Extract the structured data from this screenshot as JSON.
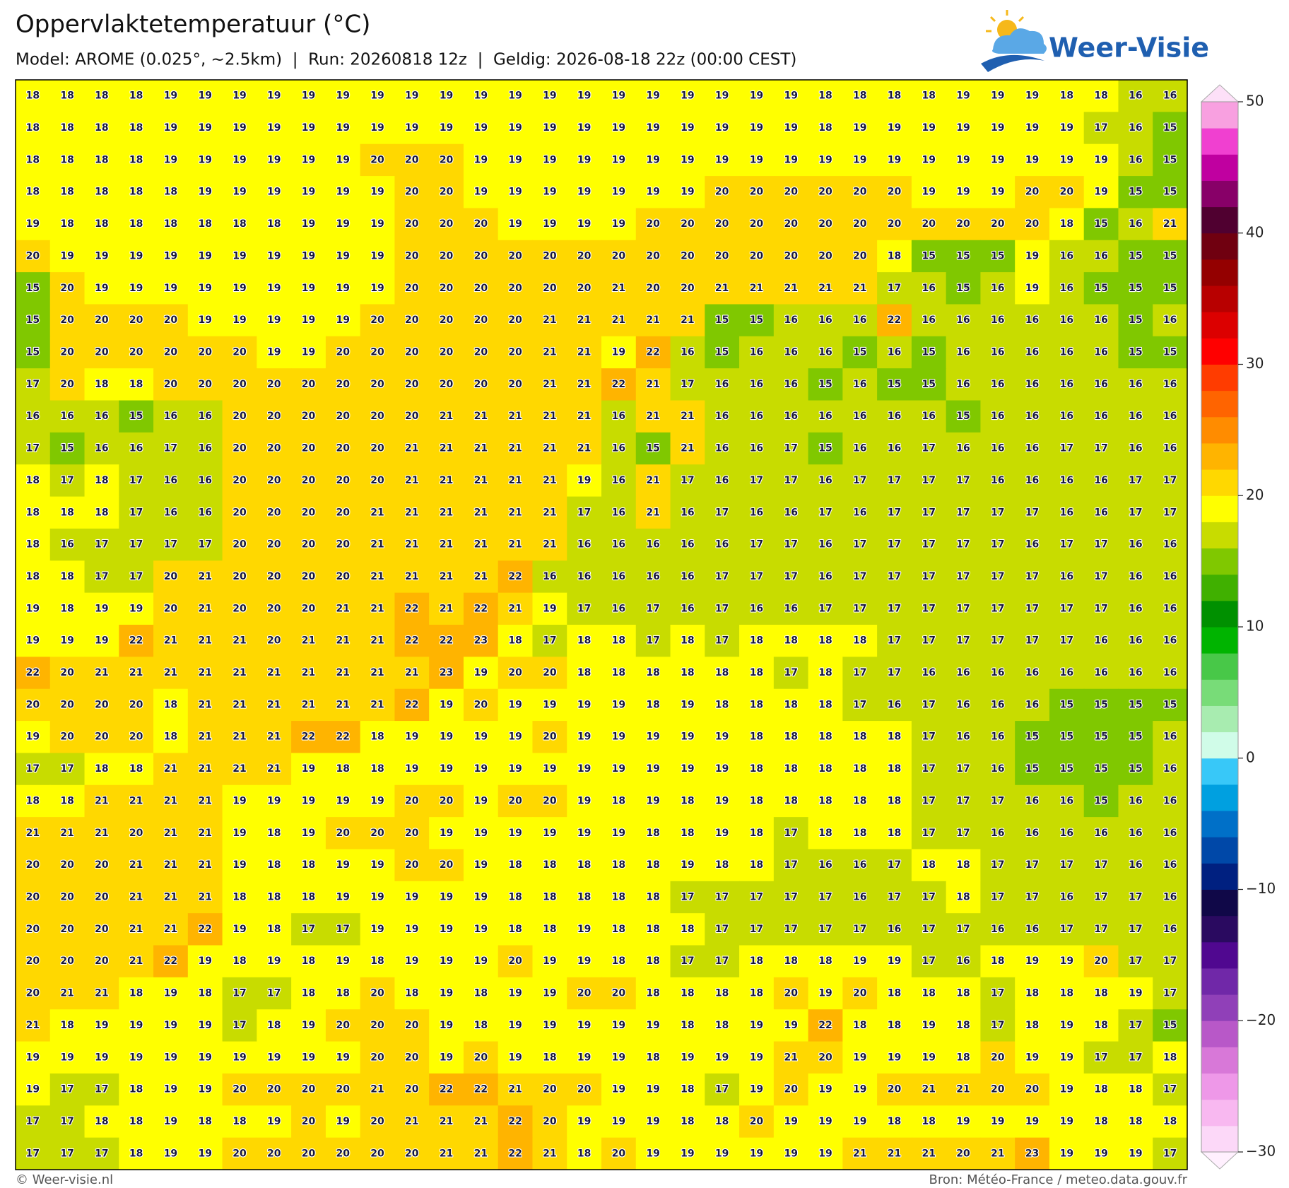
{
  "header": {
    "title": "Oppervlaktetemperatuur (°C)",
    "subtitle": "Model: AROME (0.025°, ~2.5km)  |  Run: 20260818 12z  |  Geldig: 2026-08-18 22z (00:00 CEST)",
    "logo": "Weer-Visie"
  },
  "map": {
    "type": "heatmap",
    "values": [
      [
        18,
        18,
        18,
        18,
        19,
        19,
        19,
        19,
        19,
        19,
        19,
        19,
        19,
        19,
        19,
        19,
        19,
        19,
        19,
        19,
        19,
        19,
        19,
        18,
        18,
        18,
        18,
        19,
        19,
        19,
        18,
        18,
        16,
        16
      ],
      [
        18,
        18,
        18,
        18,
        19,
        19,
        19,
        19,
        19,
        19,
        19,
        19,
        19,
        19,
        19,
        19,
        19,
        19,
        19,
        19,
        19,
        19,
        19,
        18,
        19,
        19,
        19,
        19,
        19,
        19,
        19,
        17,
        16,
        15
      ],
      [
        18,
        18,
        18,
        18,
        19,
        19,
        19,
        19,
        19,
        19,
        20,
        20,
        20,
        19,
        19,
        19,
        19,
        19,
        19,
        19,
        19,
        19,
        19,
        19,
        19,
        19,
        19,
        19,
        19,
        19,
        19,
        19,
        16,
        15
      ],
      [
        18,
        18,
        18,
        18,
        18,
        19,
        19,
        19,
        19,
        19,
        19,
        20,
        20,
        19,
        19,
        19,
        19,
        19,
        19,
        19,
        20,
        20,
        20,
        20,
        20,
        20,
        19,
        19,
        19,
        20,
        20,
        19,
        15,
        15
      ],
      [
        19,
        18,
        18,
        18,
        18,
        18,
        18,
        18,
        19,
        19,
        19,
        20,
        20,
        20,
        19,
        19,
        19,
        19,
        20,
        20,
        20,
        20,
        20,
        20,
        20,
        20,
        20,
        20,
        20,
        20,
        18,
        15,
        16,
        21
      ],
      [
        20,
        19,
        19,
        19,
        19,
        19,
        19,
        19,
        19,
        19,
        19,
        20,
        20,
        20,
        20,
        20,
        20,
        20,
        20,
        20,
        20,
        20,
        20,
        20,
        20,
        18,
        15,
        15,
        15,
        19,
        16,
        16,
        15,
        15
      ],
      [
        15,
        20,
        19,
        19,
        19,
        19,
        19,
        19,
        19,
        19,
        19,
        20,
        20,
        20,
        20,
        20,
        20,
        21,
        20,
        20,
        21,
        21,
        21,
        21,
        21,
        17,
        16,
        15,
        16,
        19,
        16,
        15,
        15,
        15
      ],
      [
        15,
        20,
        20,
        20,
        20,
        19,
        19,
        19,
        19,
        19,
        20,
        20,
        20,
        20,
        20,
        21,
        21,
        21,
        21,
        21,
        15,
        15,
        16,
        16,
        16,
        22,
        16,
        16,
        16,
        16,
        16,
        16,
        15,
        16
      ],
      [
        15,
        20,
        20,
        20,
        20,
        20,
        20,
        19,
        19,
        20,
        20,
        20,
        20,
        20,
        20,
        21,
        21,
        19,
        22,
        16,
        15,
        16,
        16,
        16,
        15,
        16,
        15,
        16,
        16,
        16,
        16,
        16,
        15,
        15
      ],
      [
        17,
        20,
        18,
        18,
        20,
        20,
        20,
        20,
        20,
        20,
        20,
        20,
        20,
        20,
        20,
        21,
        21,
        22,
        21,
        17,
        16,
        16,
        16,
        15,
        16,
        15,
        15,
        16,
        16,
        16,
        16,
        16,
        16,
        16
      ],
      [
        16,
        16,
        16,
        15,
        16,
        16,
        20,
        20,
        20,
        20,
        20,
        20,
        21,
        21,
        21,
        21,
        21,
        16,
        21,
        21,
        16,
        16,
        16,
        16,
        16,
        16,
        16,
        15,
        16,
        16,
        16,
        16,
        16,
        16
      ],
      [
        17,
        15,
        16,
        16,
        17,
        16,
        20,
        20,
        20,
        20,
        20,
        21,
        21,
        21,
        21,
        21,
        21,
        16,
        15,
        21,
        16,
        16,
        17,
        15,
        16,
        16,
        17,
        16,
        16,
        16,
        17,
        17,
        16,
        16
      ],
      [
        18,
        17,
        18,
        17,
        16,
        16,
        20,
        20,
        20,
        20,
        20,
        21,
        21,
        21,
        21,
        21,
        19,
        16,
        21,
        17,
        16,
        17,
        17,
        16,
        17,
        17,
        17,
        17,
        16,
        16,
        16,
        16,
        17,
        17
      ],
      [
        18,
        18,
        18,
        17,
        16,
        16,
        20,
        20,
        20,
        20,
        21,
        21,
        21,
        21,
        21,
        21,
        17,
        16,
        21,
        16,
        17,
        16,
        16,
        17,
        16,
        17,
        17,
        17,
        17,
        17,
        16,
        16,
        17,
        17
      ],
      [
        18,
        16,
        17,
        17,
        17,
        17,
        20,
        20,
        20,
        20,
        21,
        21,
        21,
        21,
        21,
        21,
        16,
        16,
        16,
        16,
        16,
        17,
        17,
        16,
        17,
        17,
        17,
        17,
        17,
        16,
        17,
        17,
        16,
        16
      ],
      [
        18,
        18,
        17,
        17,
        20,
        21,
        20,
        20,
        20,
        20,
        21,
        21,
        21,
        21,
        22,
        16,
        16,
        16,
        16,
        16,
        17,
        17,
        17,
        16,
        17,
        17,
        17,
        17,
        17,
        17,
        16,
        17,
        16,
        16
      ],
      [
        19,
        18,
        19,
        19,
        20,
        21,
        20,
        20,
        20,
        21,
        21,
        22,
        21,
        22,
        21,
        19,
        17,
        16,
        17,
        16,
        17,
        16,
        16,
        17,
        17,
        17,
        17,
        17,
        17,
        17,
        17,
        17,
        16,
        16
      ],
      [
        19,
        19,
        19,
        22,
        21,
        21,
        21,
        20,
        21,
        21,
        21,
        22,
        22,
        23,
        18,
        17,
        18,
        18,
        17,
        18,
        17,
        18,
        18,
        18,
        18,
        17,
        17,
        17,
        17,
        17,
        17,
        16,
        16,
        16
      ],
      [
        22,
        20,
        21,
        21,
        21,
        21,
        21,
        21,
        21,
        21,
        21,
        21,
        23,
        19,
        20,
        20,
        18,
        18,
        18,
        18,
        18,
        18,
        17,
        18,
        17,
        17,
        16,
        16,
        16,
        16,
        16,
        16,
        16,
        16
      ],
      [
        20,
        20,
        20,
        20,
        18,
        21,
        21,
        21,
        21,
        21,
        21,
        22,
        19,
        20,
        19,
        19,
        19,
        19,
        18,
        19,
        18,
        18,
        18,
        18,
        17,
        16,
        17,
        16,
        16,
        16,
        15,
        15,
        15,
        15
      ],
      [
        19,
        20,
        20,
        20,
        18,
        21,
        21,
        21,
        22,
        22,
        18,
        19,
        19,
        19,
        19,
        20,
        19,
        19,
        19,
        19,
        19,
        18,
        18,
        18,
        18,
        18,
        17,
        16,
        16,
        15,
        15,
        15,
        15,
        16
      ],
      [
        17,
        17,
        18,
        18,
        21,
        21,
        21,
        21,
        19,
        18,
        18,
        19,
        19,
        19,
        19,
        19,
        19,
        19,
        19,
        19,
        19,
        18,
        18,
        18,
        18,
        18,
        17,
        17,
        16,
        15,
        15,
        15,
        15,
        16
      ],
      [
        18,
        18,
        21,
        21,
        21,
        21,
        19,
        19,
        19,
        19,
        19,
        20,
        20,
        19,
        20,
        20,
        19,
        18,
        19,
        18,
        19,
        18,
        18,
        18,
        18,
        18,
        17,
        17,
        17,
        16,
        16,
        15,
        16,
        16
      ],
      [
        21,
        21,
        21,
        20,
        21,
        21,
        19,
        18,
        19,
        20,
        20,
        20,
        19,
        19,
        19,
        19,
        19,
        19,
        18,
        18,
        19,
        18,
        17,
        18,
        18,
        18,
        17,
        17,
        16,
        16,
        16,
        16,
        16,
        16
      ],
      [
        20,
        20,
        20,
        21,
        21,
        21,
        19,
        18,
        18,
        19,
        19,
        20,
        20,
        19,
        18,
        18,
        18,
        18,
        18,
        19,
        18,
        18,
        17,
        16,
        16,
        17,
        18,
        18,
        17,
        17,
        17,
        17,
        16,
        16
      ],
      [
        20,
        20,
        20,
        21,
        21,
        21,
        18,
        18,
        18,
        19,
        19,
        19,
        19,
        19,
        18,
        18,
        18,
        18,
        18,
        17,
        17,
        17,
        17,
        17,
        16,
        17,
        17,
        18,
        17,
        17,
        16,
        17,
        17,
        16
      ],
      [
        20,
        20,
        20,
        21,
        21,
        22,
        19,
        18,
        17,
        17,
        19,
        19,
        19,
        19,
        18,
        18,
        19,
        18,
        18,
        18,
        17,
        17,
        17,
        17,
        17,
        16,
        17,
        17,
        16,
        16,
        17,
        17,
        17,
        16
      ],
      [
        20,
        20,
        20,
        21,
        22,
        19,
        18,
        19,
        18,
        19,
        18,
        19,
        19,
        19,
        20,
        19,
        19,
        18,
        18,
        17,
        17,
        18,
        18,
        18,
        19,
        19,
        17,
        16,
        18,
        19,
        19,
        20,
        17,
        17
      ],
      [
        20,
        21,
        21,
        18,
        19,
        18,
        17,
        17,
        18,
        18,
        20,
        18,
        19,
        18,
        19,
        19,
        20,
        20,
        18,
        18,
        18,
        18,
        20,
        19,
        20,
        18,
        18,
        18,
        17,
        18,
        18,
        18,
        19,
        17
      ],
      [
        21,
        18,
        19,
        19,
        19,
        19,
        17,
        18,
        19,
        20,
        20,
        20,
        19,
        18,
        19,
        19,
        19,
        19,
        19,
        18,
        18,
        19,
        19,
        22,
        18,
        18,
        19,
        18,
        17,
        18,
        19,
        18,
        17,
        15
      ],
      [
        19,
        19,
        19,
        19,
        19,
        19,
        19,
        19,
        19,
        19,
        20,
        20,
        19,
        20,
        19,
        18,
        19,
        19,
        18,
        19,
        19,
        19,
        21,
        20,
        19,
        19,
        19,
        18,
        20,
        19,
        19,
        17,
        17,
        18
      ],
      [
        19,
        17,
        17,
        18,
        19,
        19,
        20,
        20,
        20,
        20,
        21,
        20,
        22,
        22,
        21,
        20,
        20,
        19,
        19,
        18,
        17,
        19,
        20,
        19,
        19,
        20,
        21,
        21,
        20,
        20,
        19,
        18,
        18,
        17
      ],
      [
        17,
        17,
        18,
        18,
        19,
        18,
        18,
        19,
        20,
        19,
        20,
        21,
        21,
        21,
        22,
        20,
        19,
        19,
        19,
        18,
        18,
        20,
        19,
        19,
        19,
        18,
        18,
        19,
        19,
        19,
        19,
        18,
        18,
        18
      ],
      [
        17,
        17,
        17,
        18,
        19,
        19,
        20,
        20,
        20,
        20,
        20,
        20,
        21,
        21,
        22,
        21,
        18,
        20,
        19,
        19,
        19,
        19,
        19,
        19,
        21,
        21,
        21,
        20,
        21,
        23,
        19,
        19,
        19,
        17
      ]
    ],
    "colorbar": {
      "lim": [
        -30,
        50
      ],
      "ticks": [
        50,
        40,
        30,
        20,
        10,
        0,
        {
          "value": -10,
          "label": "−10"
        },
        {
          "value": -20,
          "label": "−20"
        },
        {
          "value": -30,
          "label": "−30"
        }
      ],
      "colors": [
        "#fcd8f8",
        "#f8b8f0",
        "#ee98e8",
        "#d878d8",
        "#b858c8",
        "#9040b8",
        "#7028a8",
        "#500890",
        "#2a0a60",
        "#100848",
        "#002080",
        "#0048a8",
        "#0070c8",
        "#00a0e0",
        "#38c8f8",
        "#d0fce8",
        "#a8ecb0",
        "#78dc78",
        "#48c848",
        "#00b400",
        "#009000",
        "#40b000",
        "#80c800",
        "#c8dc00",
        "#ffff00",
        "#ffd800",
        "#ffb400",
        "#ff8c00",
        "#ff6400",
        "#ff3c00",
        "#ff0000",
        "#dc0000",
        "#b80000",
        "#940000",
        "#700010",
        "#500030",
        "#880068",
        "#c000a0",
        "#f040d0",
        "#f8a0e0"
      ],
      "over_color": "#fde0f8",
      "under_color": "#fff0fe"
    }
  },
  "footer": {
    "left": "© Weer-visie.nl",
    "right": "Bron: Météo-France / meteo.data.gouv.fr"
  }
}
